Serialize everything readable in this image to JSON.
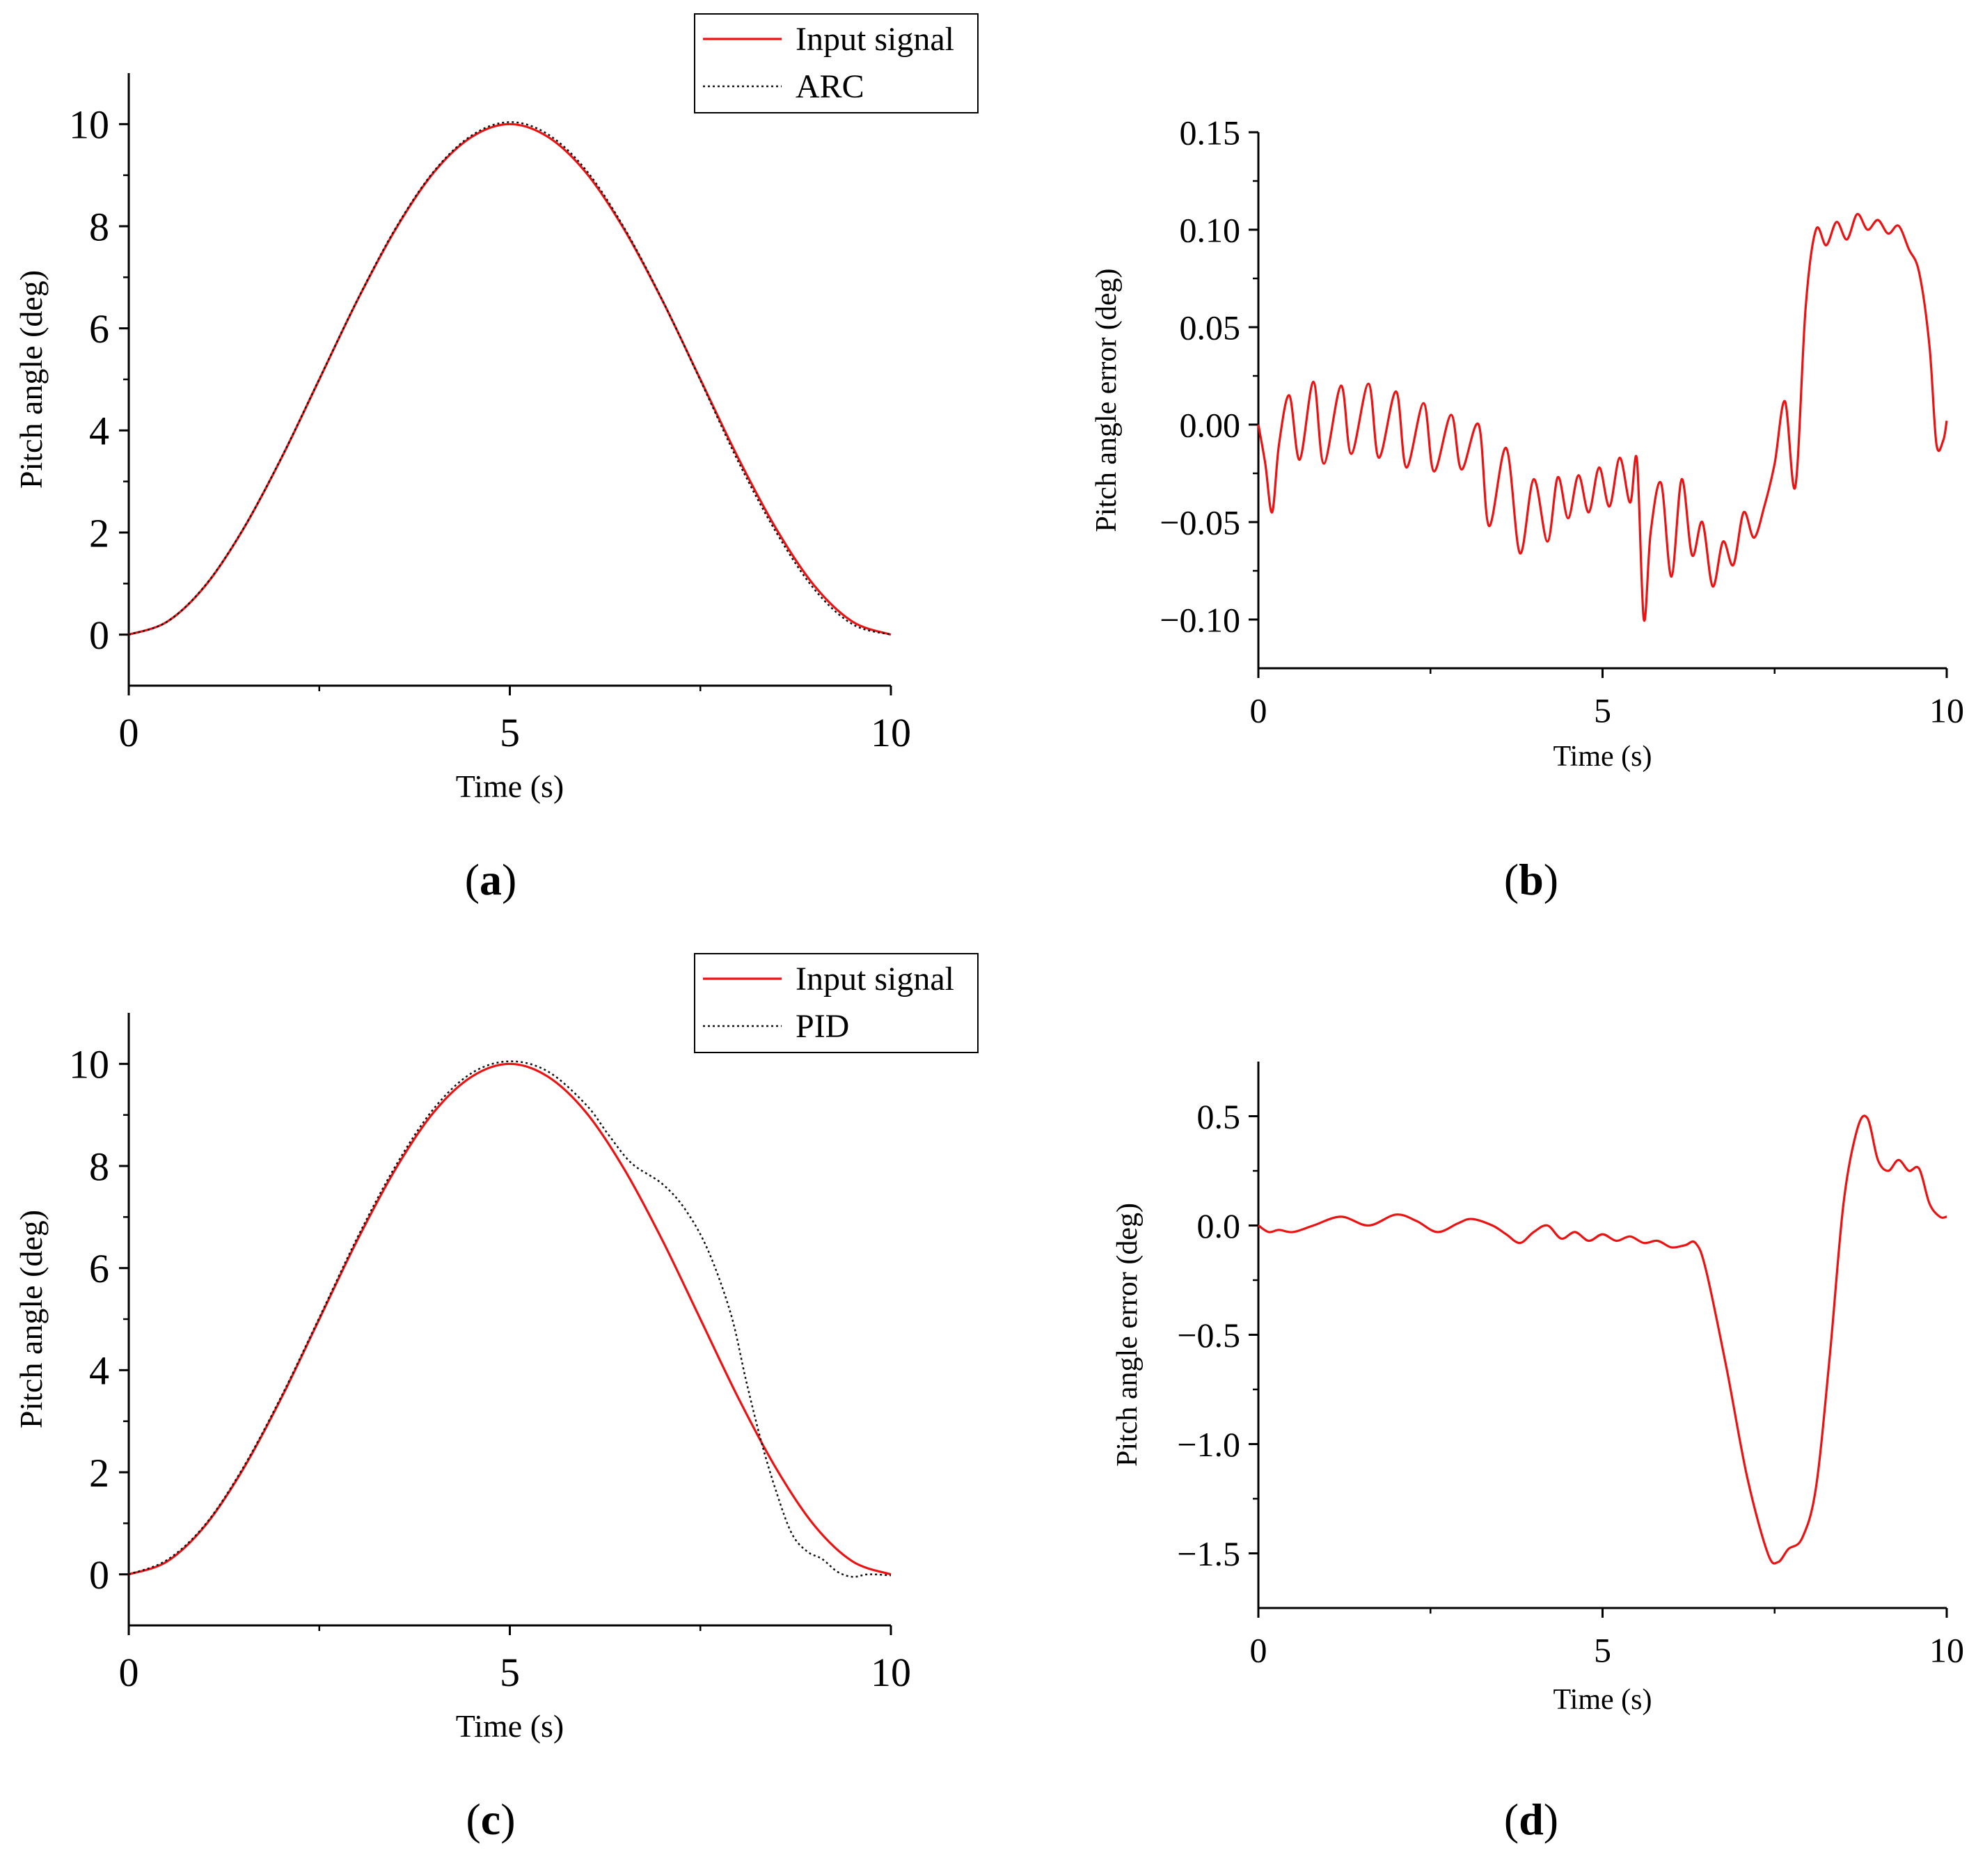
{
  "colors": {
    "input": "#ee1111",
    "response": "#111111",
    "error": "#ee1111",
    "axis": "#000000"
  },
  "chart_data": [
    {
      "id": "a",
      "type": "line",
      "panel_label": "(a)",
      "xlabel": "Time (s)",
      "ylabel": "Pitch angle (deg)",
      "xlim": [
        0,
        10
      ],
      "ylim": [
        -1,
        11
      ],
      "xticks": [
        "0",
        "5",
        "10"
      ],
      "xtick_values": [
        0,
        5,
        10
      ],
      "yticks": [
        "0",
        "2",
        "4",
        "6",
        "8",
        "10"
      ],
      "ytick_values": [
        0,
        2,
        4,
        6,
        8,
        10
      ],
      "legend": [
        "Input signal",
        "ARC"
      ],
      "legend_position": "top-right",
      "series": [
        {
          "name": "Input signal",
          "style": "solid",
          "x": [
            0,
            0.5,
            1,
            1.5,
            2,
            2.5,
            3,
            3.5,
            4,
            4.5,
            5,
            5.5,
            6,
            6.5,
            7,
            7.5,
            8,
            8.5,
            9,
            9.5,
            10
          ],
          "y": [
            0,
            0.25,
            0.95,
            2.06,
            3.45,
            5.0,
            6.55,
            7.94,
            9.05,
            9.75,
            10.0,
            9.75,
            9.05,
            7.94,
            6.55,
            5.0,
            3.45,
            2.06,
            0.95,
            0.25,
            0
          ]
        },
        {
          "name": "ARC",
          "style": "dotted",
          "x": [
            0,
            0.5,
            1,
            1.5,
            2,
            2.5,
            3,
            3.5,
            4,
            4.5,
            5,
            5.5,
            6,
            6.5,
            7,
            7.5,
            8,
            8.5,
            9,
            9.5,
            10
          ],
          "y": [
            0,
            0.25,
            0.96,
            2.07,
            3.46,
            5.01,
            6.56,
            7.96,
            9.07,
            9.78,
            10.04,
            9.8,
            9.1,
            7.97,
            6.56,
            4.98,
            3.38,
            1.99,
            0.88,
            0.2,
            0
          ]
        }
      ]
    },
    {
      "id": "b",
      "type": "line",
      "panel_label": "(b)",
      "xlabel": "Time (s)",
      "ylabel": "Pitch angle error (deg)",
      "xlim": [
        0,
        10
      ],
      "ylim": [
        -0.125,
        0.15
      ],
      "xticks": [
        "0",
        "5",
        "10"
      ],
      "xtick_values": [
        0,
        5,
        10
      ],
      "yticks": [
        "−0.10",
        "−0.05",
        "0.00",
        "0.05",
        "0.10",
        "0.15"
      ],
      "ytick_values": [
        -0.1,
        -0.05,
        0.0,
        0.05,
        0.1,
        0.15
      ],
      "series": [
        {
          "name": "Pitch angle error",
          "style": "solid",
          "x": [
            0,
            0.1,
            0.2,
            0.3,
            0.45,
            0.6,
            0.8,
            0.95,
            1.2,
            1.35,
            1.6,
            1.75,
            2.0,
            2.15,
            2.4,
            2.55,
            2.8,
            2.95,
            3.2,
            3.35,
            3.6,
            3.8,
            4.0,
            4.2,
            4.35,
            4.5,
            4.65,
            4.8,
            4.95,
            5.1,
            5.25,
            5.4,
            5.5,
            5.6,
            5.7,
            5.85,
            6.0,
            6.15,
            6.3,
            6.45,
            6.6,
            6.75,
            6.9,
            7.05,
            7.2,
            7.35,
            7.5,
            7.65,
            7.8,
            7.95,
            8.1,
            8.25,
            8.4,
            8.55,
            8.7,
            8.85,
            9.0,
            9.15,
            9.3,
            9.45,
            9.6,
            9.75,
            9.85,
            9.95,
            10.0
          ],
          "y": [
            0.0,
            -0.02,
            -0.045,
            -0.01,
            0.015,
            -0.018,
            0.022,
            -0.02,
            0.02,
            -0.015,
            0.021,
            -0.017,
            0.017,
            -0.022,
            0.011,
            -0.024,
            0.005,
            -0.023,
            0.0,
            -0.052,
            -0.012,
            -0.066,
            -0.028,
            -0.06,
            -0.027,
            -0.048,
            -0.026,
            -0.045,
            -0.022,
            -0.042,
            -0.017,
            -0.04,
            -0.018,
            -0.1,
            -0.055,
            -0.03,
            -0.078,
            -0.028,
            -0.067,
            -0.05,
            -0.083,
            -0.06,
            -0.072,
            -0.045,
            -0.058,
            -0.042,
            -0.02,
            0.012,
            -0.032,
            0.06,
            0.1,
            0.092,
            0.104,
            0.095,
            0.108,
            0.1,
            0.105,
            0.098,
            0.102,
            0.09,
            0.078,
            0.04,
            -0.01,
            -0.008,
            0.002
          ]
        }
      ]
    },
    {
      "id": "c",
      "type": "line",
      "panel_label": "(c)",
      "xlabel": "Time (s)",
      "ylabel": "Pitch angle (deg)",
      "xlim": [
        0,
        10
      ],
      "ylim": [
        -1,
        11
      ],
      "xticks": [
        "0",
        "5",
        "10"
      ],
      "xtick_values": [
        0,
        5,
        10
      ],
      "yticks": [
        "0",
        "2",
        "4",
        "6",
        "8",
        "10"
      ],
      "ytick_values": [
        0,
        2,
        4,
        6,
        8,
        10
      ],
      "legend": [
        "Input signal",
        "PID"
      ],
      "legend_position": "top-right",
      "series": [
        {
          "name": "Input signal",
          "style": "solid",
          "x": [
            0,
            0.5,
            1,
            1.5,
            2,
            2.5,
            3,
            3.5,
            4,
            4.5,
            5,
            5.5,
            6,
            6.5,
            7,
            7.5,
            8,
            8.5,
            9,
            9.5,
            10
          ],
          "y": [
            0,
            0.25,
            0.95,
            2.06,
            3.45,
            5.0,
            6.55,
            7.94,
            9.05,
            9.75,
            10.0,
            9.75,
            9.05,
            7.94,
            6.55,
            5.0,
            3.45,
            2.06,
            0.95,
            0.25,
            0
          ]
        },
        {
          "name": "PID",
          "style": "dotted",
          "x": [
            0,
            0.5,
            1,
            1.5,
            2,
            2.5,
            3,
            3.5,
            4,
            4.5,
            5,
            5.5,
            6,
            6.3,
            6.6,
            7.0,
            7.3,
            7.6,
            7.9,
            8.1,
            8.3,
            8.5,
            8.7,
            8.9,
            9.1,
            9.3,
            9.5,
            9.7,
            10
          ],
          "y": [
            0,
            0.28,
            0.97,
            2.09,
            3.48,
            5.03,
            6.6,
            8.0,
            9.12,
            9.82,
            10.05,
            9.85,
            9.2,
            8.6,
            8.05,
            7.65,
            7.15,
            6.35,
            5.1,
            3.8,
            2.6,
            1.6,
            0.8,
            0.45,
            0.3,
            0.05,
            -0.05,
            0.0,
            -0.02
          ]
        }
      ]
    },
    {
      "id": "d",
      "type": "line",
      "panel_label": "(d)",
      "xlabel": "Time (s)",
      "ylabel": "Pitch angle error (deg)",
      "xlim": [
        0,
        10
      ],
      "ylim": [
        -1.75,
        0.75
      ],
      "xticks": [
        "0",
        "5",
        "10"
      ],
      "xtick_values": [
        0,
        5,
        10
      ],
      "yticks": [
        "−1.5",
        "−1.0",
        "−0.5",
        "0.0",
        "0.5"
      ],
      "ytick_values": [
        -1.5,
        -1.0,
        -0.5,
        0.0,
        0.5
      ],
      "series": [
        {
          "name": "Pitch angle error",
          "style": "solid",
          "x": [
            0,
            0.15,
            0.3,
            0.5,
            0.8,
            1.2,
            1.6,
            2.0,
            2.3,
            2.6,
            2.9,
            3.1,
            3.4,
            3.6,
            3.8,
            4.0,
            4.2,
            4.4,
            4.6,
            4.8,
            5.0,
            5.2,
            5.4,
            5.6,
            5.8,
            6.0,
            6.2,
            6.35,
            6.5,
            6.8,
            7.1,
            7.4,
            7.55,
            7.7,
            7.9,
            8.1,
            8.3,
            8.5,
            8.7,
            8.85,
            9.0,
            9.15,
            9.3,
            9.45,
            9.6,
            9.75,
            9.9,
            10.0
          ],
          "y": [
            0.0,
            -0.03,
            -0.02,
            -0.03,
            0.0,
            0.04,
            0.0,
            0.05,
            0.02,
            -0.03,
            0.01,
            0.03,
            0.0,
            -0.04,
            -0.08,
            -0.03,
            0.0,
            -0.06,
            -0.03,
            -0.07,
            -0.04,
            -0.07,
            -0.05,
            -0.08,
            -0.07,
            -0.1,
            -0.09,
            -0.08,
            -0.2,
            -0.65,
            -1.15,
            -1.5,
            -1.54,
            -1.48,
            -1.43,
            -1.2,
            -0.6,
            0.1,
            0.44,
            0.49,
            0.3,
            0.25,
            0.3,
            0.25,
            0.26,
            0.1,
            0.04,
            0.04
          ]
        }
      ]
    }
  ]
}
